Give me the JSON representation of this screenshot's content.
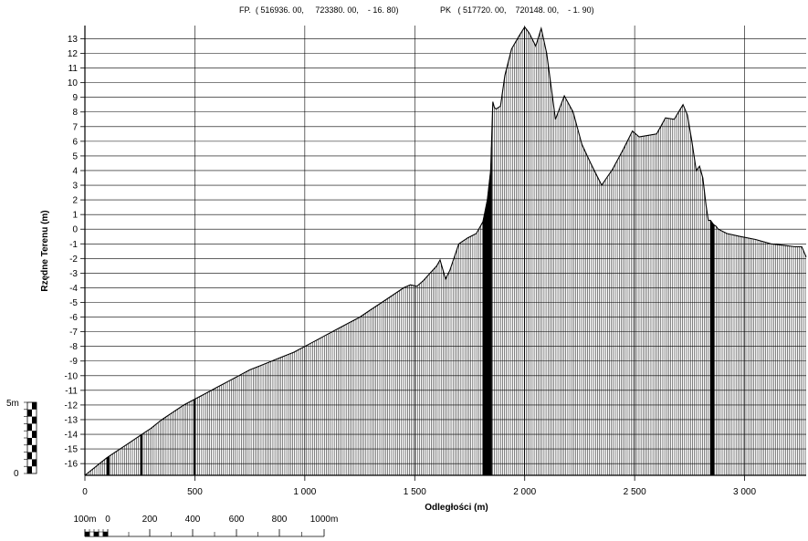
{
  "header": {
    "start_point": "FP.  ( 516936. 00,     723380. 00,    - 16. 80)",
    "end_point": "PK   ( 517720. 00,    720148. 00,    - 1. 90)"
  },
  "chart_data": {
    "type": "area",
    "xlabel": "Odległości (m)",
    "ylabel": "Rzędne Terenu (m)",
    "xlim": [
      0,
      3280
    ],
    "ylim": [
      -16.8,
      13.9
    ],
    "grid": true,
    "x_ticks": [
      0,
      500,
      1000,
      1500,
      2000,
      2500,
      3000
    ],
    "x_tick_labels": [
      "0",
      "500",
      "1 000",
      "1 500",
      "2 000",
      "2 500",
      "3 000"
    ],
    "y_ticks": [
      13,
      12,
      11,
      10,
      9,
      8,
      7,
      6,
      5,
      4,
      3,
      2,
      1,
      0,
      -1,
      -2,
      -3,
      -4,
      -5,
      -6,
      -7,
      -8,
      -9,
      -10,
      -11,
      -12,
      -13,
      -14,
      -15,
      -16
    ],
    "profile": {
      "x": [
        0,
        50,
        100,
        150,
        200,
        250,
        300,
        350,
        400,
        450,
        500,
        550,
        600,
        650,
        700,
        750,
        800,
        850,
        900,
        950,
        1000,
        1050,
        1100,
        1150,
        1200,
        1250,
        1300,
        1350,
        1400,
        1450,
        1480,
        1510,
        1540,
        1570,
        1600,
        1615,
        1640,
        1660,
        1700,
        1740,
        1780,
        1810,
        1830,
        1845,
        1855,
        1862,
        1870,
        1890,
        1910,
        1940,
        1975,
        2000,
        2020,
        2050,
        2075,
        2100,
        2140,
        2180,
        2220,
        2260,
        2300,
        2350,
        2400,
        2450,
        2490,
        2520,
        2560,
        2600,
        2640,
        2680,
        2700,
        2720,
        2740,
        2760,
        2780,
        2795,
        2810,
        2825,
        2835,
        2845,
        2850,
        2855,
        2860,
        2870,
        2880,
        2920,
        2980,
        3050,
        3120,
        3180,
        3230,
        3260,
        3280
      ],
      "y": [
        -16.8,
        -16.2,
        -15.6,
        -15.1,
        -14.6,
        -14.1,
        -13.6,
        -13.0,
        -12.5,
        -12.0,
        -11.6,
        -11.2,
        -10.8,
        -10.4,
        -10.0,
        -9.6,
        -9.3,
        -9.0,
        -8.7,
        -8.4,
        -8.0,
        -7.6,
        -7.2,
        -6.8,
        -6.4,
        -6.0,
        -5.5,
        -5.0,
        -4.5,
        -4.0,
        -3.8,
        -3.9,
        -3.5,
        -3.0,
        -2.5,
        -2.1,
        -3.4,
        -2.8,
        -1.0,
        -0.6,
        -0.3,
        0.5,
        2.0,
        4.0,
        8.7,
        8.3,
        8.2,
        8.4,
        10.5,
        12.3,
        13.2,
        13.8,
        13.4,
        12.5,
        13.7,
        12.0,
        7.5,
        9.1,
        8.0,
        5.8,
        4.5,
        3.0,
        4.1,
        5.5,
        6.7,
        6.3,
        6.4,
        6.5,
        7.6,
        7.5,
        8.0,
        8.5,
        7.8,
        6.0,
        4.0,
        4.3,
        3.5,
        1.6,
        0.6,
        0.6,
        0.5,
        0.4,
        0.3,
        0.2,
        0.0,
        -0.3,
        -0.5,
        -0.7,
        -1.0,
        -1.1,
        -1.2,
        -1.2,
        -1.9
      ]
    },
    "vertical_scale_bar": {
      "label_top": "5m",
      "label_bottom": "0"
    },
    "horizontal_scale_bar": {
      "labels": [
        "100m",
        "0",
        "200",
        "400",
        "600",
        "800",
        "1000m"
      ]
    }
  }
}
